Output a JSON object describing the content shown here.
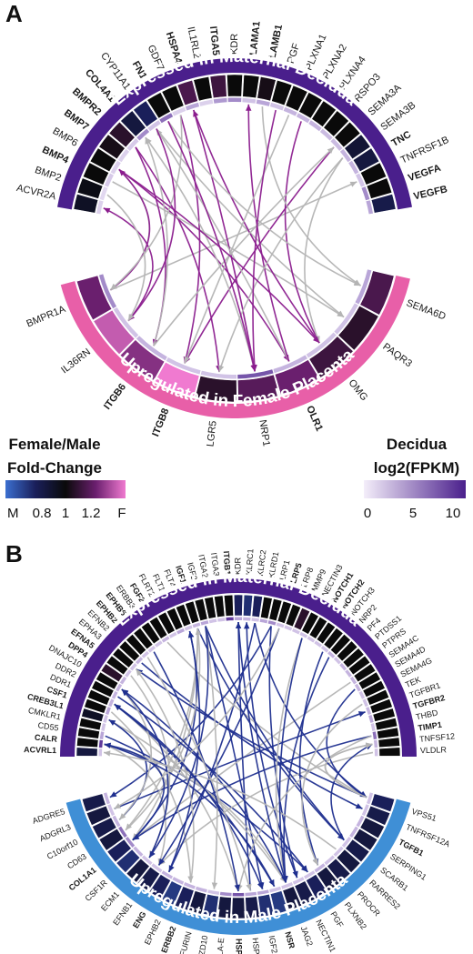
{
  "colors": {
    "decidua_arc": "#4a1f8c",
    "female_arc": "#e85fa8",
    "male_arc": "#3f8fd6",
    "link_grey": "#b4b4b4",
    "link_female": "#8b1d8e",
    "link_male": "#1f2f8f"
  },
  "legend": {
    "fc_title_line1": "Female/Male",
    "fc_title_line2": "Fold-Change",
    "fc_ticks": [
      "M",
      "0.8",
      "1",
      "1.2",
      "F"
    ],
    "fpkm_title_line1": "Decidua",
    "fpkm_title_line2": "log2(FPKM)",
    "fpkm_ticks": [
      "0",
      "5",
      "10"
    ]
  },
  "panels": [
    {
      "letter": "A",
      "top_title": "Expressed in Maternal Decidua",
      "bottom_title": "Upregulated in Female Placenta",
      "top_genes": [
        {
          "name": "ACVR2A",
          "bold": false,
          "fpkm": 0.2,
          "fc": 0.95
        },
        {
          "name": "BMP2",
          "bold": false,
          "fpkm": 0.15,
          "fc": 0.98
        },
        {
          "name": "BMP4",
          "bold": true,
          "fpkm": 0.25,
          "fc": 1.0
        },
        {
          "name": "BMP6",
          "bold": false,
          "fpkm": 0.2,
          "fc": 1.0
        },
        {
          "name": "BMP7",
          "bold": true,
          "fpkm": 0.2,
          "fc": 1.02
        },
        {
          "name": "BMPR2",
          "bold": true,
          "fpkm": 0.25,
          "fc": 1.05
        },
        {
          "name": "COL4A1",
          "bold": true,
          "fpkm": 0.6,
          "fc": 0.9
        },
        {
          "name": "CYP11A1",
          "bold": false,
          "fpkm": 0.3,
          "fc": 0.85
        },
        {
          "name": "FN1",
          "bold": true,
          "fpkm": 0.7,
          "fc": 1.0
        },
        {
          "name": "GDF7",
          "bold": false,
          "fpkm": 0.2,
          "fc": 1.0
        },
        {
          "name": "HSPA4",
          "bold": true,
          "fpkm": 0.5,
          "fc": 1.1
        },
        {
          "name": "IL1RL2",
          "bold": false,
          "fpkm": 0.2,
          "fc": 1.0
        },
        {
          "name": "ITGA5",
          "bold": true,
          "fpkm": 0.55,
          "fc": 1.08
        },
        {
          "name": "KDR",
          "bold": false,
          "fpkm": 0.6,
          "fc": 1.0
        },
        {
          "name": "LAMA1",
          "bold": true,
          "fpkm": 0.3,
          "fc": 1.0
        },
        {
          "name": "LAMB1",
          "bold": true,
          "fpkm": 0.5,
          "fc": 1.02
        },
        {
          "name": "PGF",
          "bold": false,
          "fpkm": 0.3,
          "fc": 1.0
        },
        {
          "name": "PLXNA1",
          "bold": false,
          "fpkm": 0.4,
          "fc": 1.0
        },
        {
          "name": "PLXNA2",
          "bold": false,
          "fpkm": 0.4,
          "fc": 1.0
        },
        {
          "name": "PLXNA4",
          "bold": false,
          "fpkm": 0.4,
          "fc": 1.0
        },
        {
          "name": "RSPO3",
          "bold": false,
          "fpkm": 0.35,
          "fc": 1.0
        },
        {
          "name": "SEMA3A",
          "bold": false,
          "fpkm": 0.35,
          "fc": 1.0
        },
        {
          "name": "SEMA3B",
          "bold": false,
          "fpkm": 0.4,
          "fc": 0.92
        },
        {
          "name": "TNC",
          "bold": true,
          "fpkm": 0.4,
          "fc": 0.9
        },
        {
          "name": "TNFRSF1B",
          "bold": false,
          "fpkm": 0.3,
          "fc": 1.0
        },
        {
          "name": "VEGFA",
          "bold": true,
          "fpkm": 0.6,
          "fc": 1.0
        },
        {
          "name": "VEGFB",
          "bold": true,
          "fpkm": 0.5,
          "fc": 0.88
        }
      ],
      "bottom_genes": [
        {
          "name": "SEMA6D",
          "bold": false,
          "fpkm": 0.5,
          "fc": 1.1
        },
        {
          "name": "PAQR3",
          "bold": false,
          "fpkm": 0.3,
          "fc": 1.05
        },
        {
          "name": "OMG",
          "bold": false,
          "fpkm": 0.3,
          "fc": 1.08
        },
        {
          "name": "OLR1",
          "bold": true,
          "fpkm": 0.4,
          "fc": 1.15
        },
        {
          "name": "NRP1",
          "bold": false,
          "fpkm": 0.8,
          "fc": 1.12
        },
        {
          "name": "LGR5",
          "bold": false,
          "fpkm": 0.3,
          "fc": 1.05
        },
        {
          "name": "ITGB8",
          "bold": true,
          "fpkm": 0.3,
          "fc": 1.4
        },
        {
          "name": "ITGB6",
          "bold": true,
          "fpkm": 0.4,
          "fc": 1.18
        },
        {
          "name": "IL36RN",
          "bold": false,
          "fpkm": 0.3,
          "fc": 1.25
        },
        {
          "name": "BMPR1A",
          "bold": false,
          "fpkm": 0.6,
          "fc": 1.15
        }
      ]
    },
    {
      "letter": "B",
      "top_title": "Expressed in Maternal Decidua",
      "bottom_title": "Upregulated in Male Placenta",
      "top_genes": [
        {
          "name": "ACVRL1",
          "bold": true,
          "fpkm": 0.3,
          "fc": 0.9
        },
        {
          "name": "CALR",
          "bold": true,
          "fpkm": 0.9,
          "fc": 1.0
        },
        {
          "name": "CD55",
          "bold": false,
          "fpkm": 0.5,
          "fc": 1.0
        },
        {
          "name": "CMKLR1",
          "bold": false,
          "fpkm": 0.3,
          "fc": 1.0
        },
        {
          "name": "CREB3L1",
          "bold": true,
          "fpkm": 0.3,
          "fc": 0.95
        },
        {
          "name": "CSF1",
          "bold": true,
          "fpkm": 0.5,
          "fc": 1.0
        },
        {
          "name": "DDR1",
          "bold": false,
          "fpkm": 0.4,
          "fc": 1.0
        },
        {
          "name": "DDR2",
          "bold": false,
          "fpkm": 0.4,
          "fc": 1.0
        },
        {
          "name": "DNAJC10",
          "bold": false,
          "fpkm": 0.4,
          "fc": 1.0
        },
        {
          "name": "DPP4",
          "bold": true,
          "fpkm": 0.4,
          "fc": 1.05
        },
        {
          "name": "EFNA5",
          "bold": true,
          "fpkm": 0.3,
          "fc": 1.0
        },
        {
          "name": "EPHA3",
          "bold": false,
          "fpkm": 0.3,
          "fc": 1.0
        },
        {
          "name": "EFNB2",
          "bold": false,
          "fpkm": 0.4,
          "fc": 1.0
        },
        {
          "name": "EPHB2",
          "bold": true,
          "fpkm": 0.3,
          "fc": 1.0
        },
        {
          "name": "EPHB6",
          "bold": true,
          "fpkm": 0.3,
          "fc": 1.0
        },
        {
          "name": "ERBB3",
          "bold": false,
          "fpkm": 0.3,
          "fc": 1.0
        },
        {
          "name": "FGF2",
          "bold": true,
          "fpkm": 0.4,
          "fc": 1.0
        },
        {
          "name": "FLRT2",
          "bold": false,
          "fpkm": 0.3,
          "fc": 1.0
        },
        {
          "name": "FLT1",
          "bold": false,
          "fpkm": 0.5,
          "fc": 1.0
        },
        {
          "name": "FLT4",
          "bold": false,
          "fpkm": 0.3,
          "fc": 1.0
        },
        {
          "name": "IGF1",
          "bold": true,
          "fpkm": 0.4,
          "fc": 1.0
        },
        {
          "name": "IGF2",
          "bold": false,
          "fpkm": 0.5,
          "fc": 1.0
        },
        {
          "name": "ITGA2",
          "bold": false,
          "fpkm": 0.3,
          "fc": 1.0
        },
        {
          "name": "ITGA3",
          "bold": false,
          "fpkm": 0.3,
          "fc": 1.0
        },
        {
          "name": "ITGB1",
          "bold": true,
          "fpkm": 0.9,
          "fc": 1.0
        },
        {
          "name": "KDR",
          "bold": false,
          "fpkm": 0.5,
          "fc": 0.85
        },
        {
          "name": "KLRC1",
          "bold": false,
          "fpkm": 0.4,
          "fc": 0.82
        },
        {
          "name": "KLRC2",
          "bold": false,
          "fpkm": 0.3,
          "fc": 0.85
        },
        {
          "name": "KLRD1",
          "bold": false,
          "fpkm": 0.5,
          "fc": 1.0
        },
        {
          "name": "LRP1",
          "bold": false,
          "fpkm": 0.6,
          "fc": 1.0
        },
        {
          "name": "LRP5",
          "bold": true,
          "fpkm": 0.3,
          "fc": 1.0
        },
        {
          "name": "LRP8",
          "bold": false,
          "fpkm": 0.3,
          "fc": 1.0
        },
        {
          "name": "MMP9",
          "bold": false,
          "fpkm": 0.3,
          "fc": 1.05
        },
        {
          "name": "NECTIN3",
          "bold": false,
          "fpkm": 0.3,
          "fc": 1.0
        },
        {
          "name": "NOTCH1",
          "bold": true,
          "fpkm": 0.3,
          "fc": 1.0
        },
        {
          "name": "NOTCH2",
          "bold": true,
          "fpkm": 0.3,
          "fc": 1.0
        },
        {
          "name": "NOTCH3",
          "bold": false,
          "fpkm": 0.3,
          "fc": 1.0
        },
        {
          "name": "NRP2",
          "bold": false,
          "fpkm": 0.4,
          "fc": 1.0
        },
        {
          "name": "PF4",
          "bold": false,
          "fpkm": 0.3,
          "fc": 1.0
        },
        {
          "name": "PTDSS1",
          "bold": false,
          "fpkm": 0.4,
          "fc": 1.0
        },
        {
          "name": "PTPRS",
          "bold": false,
          "fpkm": 0.4,
          "fc": 1.0
        },
        {
          "name": "SEMA4C",
          "bold": false,
          "fpkm": 0.4,
          "fc": 1.0
        },
        {
          "name": "SEMA4D",
          "bold": false,
          "fpkm": 0.4,
          "fc": 1.0
        },
        {
          "name": "SEMA4G",
          "bold": false,
          "fpkm": 0.3,
          "fc": 1.0
        },
        {
          "name": "TEK",
          "bold": false,
          "fpkm": 0.3,
          "fc": 1.0
        },
        {
          "name": "TGFBR1",
          "bold": false,
          "fpkm": 0.4,
          "fc": 1.0
        },
        {
          "name": "TGFBR2",
          "bold": true,
          "fpkm": 0.5,
          "fc": 1.0
        },
        {
          "name": "THBD",
          "bold": false,
          "fpkm": 0.3,
          "fc": 1.0
        },
        {
          "name": "TIMP1",
          "bold": true,
          "fpkm": 0.7,
          "fc": 1.0
        },
        {
          "name": "TNFSF12",
          "bold": false,
          "fpkm": 0.4,
          "fc": 1.0
        },
        {
          "name": "VLDLR",
          "bold": false,
          "fpkm": 0.3,
          "fc": 1.0
        }
      ],
      "bottom_genes": [
        {
          "name": "VPS51",
          "bold": false,
          "fpkm": 0.3,
          "fc": 0.85
        },
        {
          "name": "TNFRSF12A",
          "bold": false,
          "fpkm": 0.3,
          "fc": 0.88
        },
        {
          "name": "TGFB1",
          "bold": true,
          "fpkm": 0.4,
          "fc": 0.9
        },
        {
          "name": "SERPING1",
          "bold": false,
          "fpkm": 0.4,
          "fc": 0.9
        },
        {
          "name": "SCARB1",
          "bold": false,
          "fpkm": 0.3,
          "fc": 0.88
        },
        {
          "name": "RARRES2",
          "bold": false,
          "fpkm": 0.3,
          "fc": 0.9
        },
        {
          "name": "PROCR",
          "bold": false,
          "fpkm": 0.3,
          "fc": 0.88
        },
        {
          "name": "PLXNB2",
          "bold": false,
          "fpkm": 0.4,
          "fc": 0.9
        },
        {
          "name": "PGF",
          "bold": false,
          "fpkm": 0.3,
          "fc": 0.85
        },
        {
          "name": "NECTIN1",
          "bold": false,
          "fpkm": 0.3,
          "fc": 0.88
        },
        {
          "name": "JAG2",
          "bold": false,
          "fpkm": 0.3,
          "fc": 0.9
        },
        {
          "name": "NSR",
          "bold": true,
          "fpkm": 0.3,
          "fc": 0.8
        },
        {
          "name": "IGF2",
          "bold": false,
          "fpkm": 0.5,
          "fc": 0.82
        },
        {
          "name": "HSPG2",
          "bold": false,
          "fpkm": 0.5,
          "fc": 0.88
        },
        {
          "name": "HSPA5",
          "bold": true,
          "fpkm": 0.8,
          "fc": 0.9
        },
        {
          "name": "HLA-E",
          "bold": false,
          "fpkm": 0.6,
          "fc": 0.9
        },
        {
          "name": "FZD10",
          "bold": false,
          "fpkm": 0.3,
          "fc": 0.82
        },
        {
          "name": "FURIN",
          "bold": false,
          "fpkm": 0.4,
          "fc": 0.9
        },
        {
          "name": "ERBB2",
          "bold": true,
          "fpkm": 0.4,
          "fc": 0.85
        },
        {
          "name": "EPHB2",
          "bold": false,
          "fpkm": 0.4,
          "fc": 0.8
        },
        {
          "name": "ENG",
          "bold": true,
          "fpkm": 0.4,
          "fc": 0.85
        },
        {
          "name": "EFNB1",
          "bold": false,
          "fpkm": 0.3,
          "fc": 0.88
        },
        {
          "name": "ECM1",
          "bold": false,
          "fpkm": 0.3,
          "fc": 0.9
        },
        {
          "name": "CSF1R",
          "bold": false,
          "fpkm": 0.4,
          "fc": 0.82
        },
        {
          "name": "COL1A1",
          "bold": true,
          "fpkm": 0.6,
          "fc": 0.85
        },
        {
          "name": "CD63",
          "bold": false,
          "fpkm": 0.7,
          "fc": 0.9
        },
        {
          "name": "C10orf10",
          "bold": false,
          "fpkm": 0.4,
          "fc": 0.88
        },
        {
          "name": "ADGRL3",
          "bold": false,
          "fpkm": 0.3,
          "fc": 0.9
        },
        {
          "name": "ADGRE5",
          "bold": false,
          "fpkm": 0.4,
          "fc": 0.88
        }
      ]
    }
  ]
}
